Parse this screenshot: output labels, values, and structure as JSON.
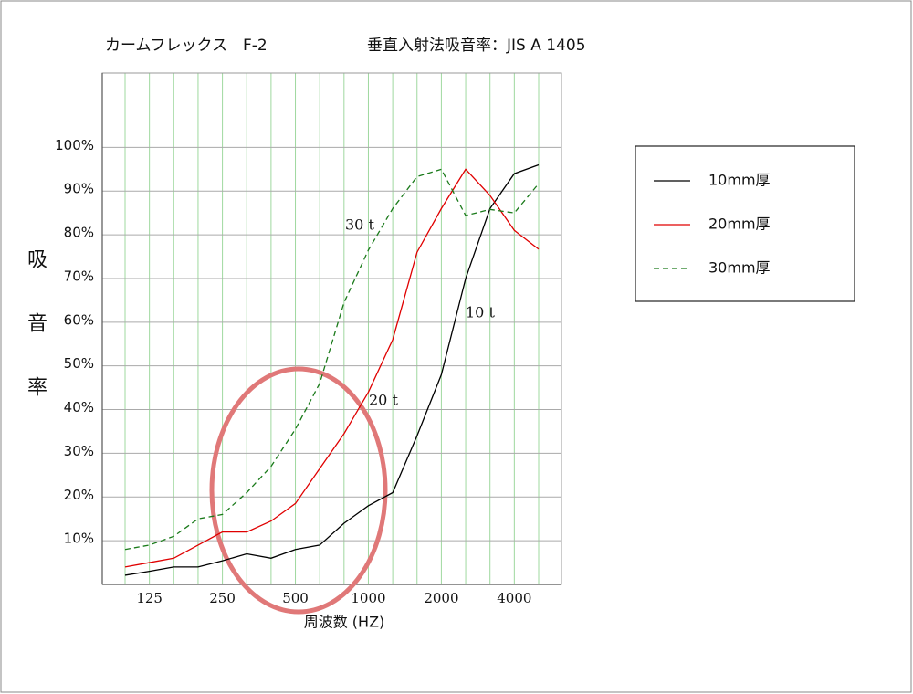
{
  "chart_data": {
    "type": "line",
    "title": "カームフレックス　F-2",
    "subtitle": "垂直入射法吸音率：JIS A 1405",
    "y_label": "吸音率",
    "x_label": "周波数 (HZ)",
    "categories": [
      null,
      "125",
      null,
      null,
      "250",
      null,
      null,
      "500",
      null,
      null,
      "1000",
      null,
      null,
      "2000",
      null,
      null,
      "4000",
      null
    ],
    "series": [
      {
        "name": "10mm厚",
        "color": "#000000",
        "dash": "solid",
        "values": [
          2.1,
          3,
          4,
          4,
          5.4,
          7,
          6,
          8,
          9,
          14,
          18,
          21,
          34,
          48,
          70,
          86,
          94,
          96
        ]
      },
      {
        "name": "20mm厚",
        "color": "#e00000",
        "dash": "solid",
        "values": [
          4,
          5,
          6,
          9,
          12,
          12,
          14.5,
          18.5,
          26.5,
          34.5,
          44,
          56,
          76,
          86,
          95,
          89,
          81,
          76.7
        ]
      },
      {
        "name": "30mm厚",
        "color": "#1a7a1a",
        "dash": "dashed",
        "values": [
          8,
          9,
          11,
          15,
          16,
          21,
          27,
          35.5,
          46,
          64.5,
          76.5,
          86,
          93.3,
          95,
          84.4,
          85.8,
          85,
          91.7
        ]
      }
    ],
    "annotations": [
      "30 t",
      "10 t",
      "20 t"
    ],
    "ylim": [
      0,
      117
    ],
    "yticks": [
      {
        "value": 10,
        "label": "10%"
      },
      {
        "value": 20,
        "label": "20%"
      },
      {
        "value": 30,
        "label": "30%"
      },
      {
        "value": 40,
        "label": "40%"
      },
      {
        "value": 50,
        "label": "50%"
      },
      {
        "value": 60,
        "label": "60%"
      },
      {
        "value": 70,
        "label": "70%"
      },
      {
        "value": 80,
        "label": "80%"
      },
      {
        "value": 90,
        "label": "90%"
      },
      {
        "value": 100,
        "label": "100%"
      }
    ],
    "grid": true,
    "legend": "right"
  }
}
